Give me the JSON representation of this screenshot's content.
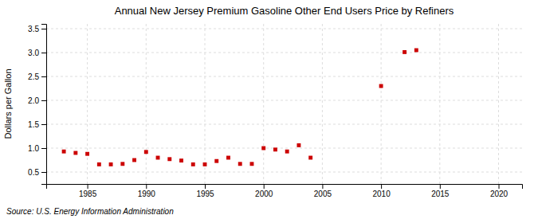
{
  "chart_data": {
    "type": "scatter",
    "title": "Annual New Jersey Premium Gasoline Other End Users Price by Refiners",
    "ylabel": "Dollars per Gallon",
    "source": "Source: U.S. Energy Information Administration",
    "x": [
      1983,
      1984,
      1985,
      1986,
      1987,
      1988,
      1989,
      1990,
      1991,
      1992,
      1993,
      1994,
      1995,
      1996,
      1997,
      1998,
      1999,
      2000,
      2001,
      2002,
      2003,
      2004,
      2010,
      2012,
      2013
    ],
    "values": [
      0.93,
      0.9,
      0.88,
      0.66,
      0.66,
      0.67,
      0.75,
      0.92,
      0.8,
      0.77,
      0.74,
      0.66,
      0.66,
      0.73,
      0.8,
      0.67,
      0.67,
      1.0,
      0.97,
      0.93,
      1.06,
      0.8,
      2.3,
      3.01,
      3.05
    ],
    "color": "#cc0000",
    "marker": "square",
    "xlim": [
      1981.5,
      2022
    ],
    "ylim": [
      0.25,
      3.6
    ],
    "xticks": [
      1985,
      1990,
      1995,
      2000,
      2005,
      2010,
      2015,
      2020
    ],
    "yticks": [
      0.5,
      {
        "value": 1.0,
        "label": "1.0"
      },
      1.5,
      {
        "value": 2.0,
        "label": "2.0"
      },
      2.5,
      {
        "value": 3.0,
        "label": "3.0"
      },
      3.5
    ],
    "grid": true
  }
}
